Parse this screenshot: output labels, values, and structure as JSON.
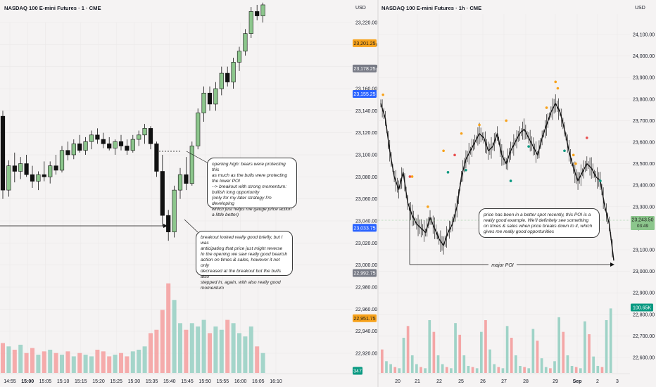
{
  "left_panel": {
    "title": "NASDAQ 100 E-mini Futures · 1 · CME",
    "currency": "USD",
    "notes": [
      {
        "lines": [
          "opening high: bears were protecting this",
          "as much as the bulls were protecting",
          "the lower POI",
          "--> breakout with strong momentum:",
          "bullish long opportunity",
          "(only for my later strategy I'm developing",
          "which just helps me gauge price action",
          "a little better)"
        ]
      },
      {
        "lines": [
          "breakout looked really good briefly, but I was",
          "anticipating that price just might reverse",
          "In the opening we saw really good bearish",
          "action on times & sales, however it not only",
          "decreased at the breakout but the bulls also",
          "stepped in, again, with also really good",
          "momentum"
        ]
      }
    ]
  },
  "right_panel": {
    "title": "NASDAQ 100 E-mini Futures · 1h · CME",
    "currency": "USD",
    "notes": [
      {
        "lines": [
          "price has been in a better spot recently, this POI is a",
          "really good example. We'll definitely see something",
          "on times & sales when price breaks down to it, which",
          "gives me really good opportunities"
        ]
      }
    ],
    "poi_label": "major POI"
  },
  "chart_data": [
    {
      "type": "candlestick",
      "title": "NASDAQ 100 E-mini Futures · 1 · CME",
      "currency": "USD",
      "x_ticks": [
        "14:55",
        "15:00",
        "15:05",
        "15:10",
        "15:15",
        "15:20",
        "15:25",
        "15:30",
        "15:35",
        "15:40",
        "15:45",
        "15:50",
        "15:55",
        "16:00",
        "16:05",
        "16:10"
      ],
      "y_ticks": [
        22920,
        22940,
        22960,
        22980,
        23000,
        23020,
        23040,
        23060,
        23080,
        23100,
        23120,
        23140,
        23160,
        23180,
        23200,
        23220
      ],
      "ylim": [
        22900,
        23235
      ],
      "price_badges": [
        {
          "label": "23,201.25",
          "value": 23201.25,
          "color": "#f7a21b"
        },
        {
          "label": "23,178.25",
          "value": 23178.25,
          "color": "#787b86"
        },
        {
          "label": "23,155.25",
          "value": 23155.25,
          "color": "#2962ff"
        },
        {
          "label": "23,033.75",
          "value": 23033.75,
          "color": "#2962ff"
        },
        {
          "label": "22,992.75",
          "value": 22992.75,
          "color": "#787b86"
        },
        {
          "label": "22,951.75",
          "value": 22951.75,
          "color": "#f7a21b"
        },
        {
          "label": "347",
          "value": 22903,
          "color": "#089981"
        }
      ],
      "candles": [
        {
          "t": 0,
          "o": 23135,
          "h": 23140,
          "l": 23060,
          "c": 23068
        },
        {
          "t": 1,
          "o": 23068,
          "h": 23095,
          "l": 23062,
          "c": 23090
        },
        {
          "t": 2,
          "o": 23090,
          "h": 23102,
          "l": 23075,
          "c": 23085
        },
        {
          "t": 3,
          "o": 23085,
          "h": 23098,
          "l": 23078,
          "c": 23092
        },
        {
          "t": 4,
          "o": 23092,
          "h": 23100,
          "l": 23080,
          "c": 23082
        },
        {
          "t": 5,
          "o": 23082,
          "h": 23090,
          "l": 23070,
          "c": 23076
        },
        {
          "t": 6,
          "o": 23076,
          "h": 23085,
          "l": 23068,
          "c": 23082
        },
        {
          "t": 7,
          "o": 23082,
          "h": 23094,
          "l": 23076,
          "c": 23080
        },
        {
          "t": 8,
          "o": 23080,
          "h": 23094,
          "l": 23074,
          "c": 23090
        },
        {
          "t": 9,
          "o": 23090,
          "h": 23100,
          "l": 23082,
          "c": 23086
        },
        {
          "t": 10,
          "o": 23086,
          "h": 23108,
          "l": 23084,
          "c": 23104
        },
        {
          "t": 11,
          "o": 23104,
          "h": 23112,
          "l": 23095,
          "c": 23100
        },
        {
          "t": 12,
          "o": 23100,
          "h": 23114,
          "l": 23096,
          "c": 23110
        },
        {
          "t": 13,
          "o": 23110,
          "h": 23118,
          "l": 23102,
          "c": 23104
        },
        {
          "t": 14,
          "o": 23104,
          "h": 23116,
          "l": 23100,
          "c": 23112
        },
        {
          "t": 15,
          "o": 23112,
          "h": 23122,
          "l": 23105,
          "c": 23118
        },
        {
          "t": 16,
          "o": 23118,
          "h": 23124,
          "l": 23110,
          "c": 23114
        },
        {
          "t": 17,
          "o": 23114,
          "h": 23120,
          "l": 23106,
          "c": 23110
        },
        {
          "t": 18,
          "o": 23110,
          "h": 23116,
          "l": 23104,
          "c": 23106
        },
        {
          "t": 19,
          "o": 23106,
          "h": 23114,
          "l": 23100,
          "c": 23112
        },
        {
          "t": 20,
          "o": 23112,
          "h": 23118,
          "l": 23104,
          "c": 23108
        },
        {
          "t": 21,
          "o": 23108,
          "h": 23114,
          "l": 23100,
          "c": 23104
        },
        {
          "t": 22,
          "o": 23104,
          "h": 23118,
          "l": 23102,
          "c": 23114
        },
        {
          "t": 23,
          "o": 23114,
          "h": 23122,
          "l": 23108,
          "c": 23118
        },
        {
          "t": 24,
          "o": 23118,
          "h": 23128,
          "l": 23110,
          "c": 23124
        },
        {
          "t": 25,
          "o": 23124,
          "h": 23126,
          "l": 23105,
          "c": 23110
        },
        {
          "t": 26,
          "o": 23110,
          "h": 23112,
          "l": 23080,
          "c": 23085
        },
        {
          "t": 27,
          "o": 23085,
          "h": 23100,
          "l": 23035,
          "c": 23045
        },
        {
          "t": 28,
          "o": 23045,
          "h": 23050,
          "l": 23022,
          "c": 23030
        },
        {
          "t": 29,
          "o": 23030,
          "h": 23072,
          "l": 23025,
          "c": 23068
        },
        {
          "t": 30,
          "o": 23068,
          "h": 23088,
          "l": 23060,
          "c": 23082
        },
        {
          "t": 31,
          "o": 23082,
          "h": 23098,
          "l": 23068,
          "c": 23074
        },
        {
          "t": 32,
          "o": 23074,
          "h": 23112,
          "l": 23072,
          "c": 23108
        },
        {
          "t": 33,
          "o": 23108,
          "h": 23142,
          "l": 23105,
          "c": 23138
        },
        {
          "t": 34,
          "o": 23138,
          "h": 23162,
          "l": 23130,
          "c": 23156
        },
        {
          "t": 35,
          "o": 23156,
          "h": 23162,
          "l": 23140,
          "c": 23146
        },
        {
          "t": 36,
          "o": 23146,
          "h": 23166,
          "l": 23140,
          "c": 23160
        },
        {
          "t": 37,
          "o": 23160,
          "h": 23180,
          "l": 23154,
          "c": 23174
        },
        {
          "t": 38,
          "o": 23174,
          "h": 23180,
          "l": 23162,
          "c": 23166
        },
        {
          "t": 39,
          "o": 23166,
          "h": 23188,
          "l": 23160,
          "c": 23184
        },
        {
          "t": 40,
          "o": 23184,
          "h": 23198,
          "l": 23176,
          "c": 23194
        },
        {
          "t": 41,
          "o": 23194,
          "h": 23214,
          "l": 23190,
          "c": 23210
        },
        {
          "t": 42,
          "o": 23210,
          "h": 23234,
          "l": 23206,
          "c": 23230
        },
        {
          "t": 43,
          "o": 23230,
          "h": 23236,
          "l": 23222,
          "c": 23226
        },
        {
          "t": 44,
          "o": 23226,
          "h": 23238,
          "l": 23220,
          "c": 23236
        }
      ],
      "volume": [
        90,
        80,
        70,
        85,
        60,
        75,
        55,
        65,
        70,
        60,
        55,
        65,
        50,
        60,
        55,
        50,
        70,
        65,
        50,
        55,
        60,
        50,
        65,
        70,
        80,
        120,
        130,
        190,
        270,
        220,
        150,
        130,
        150,
        140,
        160,
        120,
        140,
        130,
        160,
        150,
        120,
        110,
        140,
        80,
        60
      ],
      "volume_max": 280,
      "opening_high": 23102,
      "notes": 2
    },
    {
      "type": "candlestick",
      "title": "NASDAQ 100 E-mini Futures · 1h · CME",
      "currency": "USD",
      "x_ticks": [
        "20",
        "21",
        "22",
        "25",
        "26",
        "27",
        "28",
        "29",
        "Sep",
        "2",
        "3"
      ],
      "y_ticks": [
        22600,
        22700,
        22800,
        22900,
        23000,
        23100,
        23200,
        23300,
        23400,
        23500,
        23600,
        23700,
        23800,
        23900,
        24000,
        24100
      ],
      "ylim": [
        22540,
        24150
      ],
      "price_badges": [
        {
          "label": "23,243.50",
          "sub": "03:49",
          "value": 23243.5,
          "color": "#8cc68c"
        },
        {
          "label": "100.65K",
          "value": 22772,
          "color": "#089981"
        }
      ],
      "series": [
        {
          "x": 0,
          "y": 23780
        },
        {
          "x": 2,
          "y": 23710
        },
        {
          "x": 4,
          "y": 23560
        },
        {
          "x": 6,
          "y": 23440
        },
        {
          "x": 8,
          "y": 23380
        },
        {
          "x": 10,
          "y": 23460
        },
        {
          "x": 12,
          "y": 23320
        },
        {
          "x": 14,
          "y": 23260
        },
        {
          "x": 16,
          "y": 23220
        },
        {
          "x": 18,
          "y": 23200
        },
        {
          "x": 20,
          "y": 23180
        },
        {
          "x": 22,
          "y": 23250
        },
        {
          "x": 24,
          "y": 23200
        },
        {
          "x": 26,
          "y": 23150
        },
        {
          "x": 28,
          "y": 23120
        },
        {
          "x": 30,
          "y": 23180
        },
        {
          "x": 32,
          "y": 23220
        },
        {
          "x": 34,
          "y": 23300
        },
        {
          "x": 36,
          "y": 23440
        },
        {
          "x": 38,
          "y": 23520
        },
        {
          "x": 40,
          "y": 23560
        },
        {
          "x": 42,
          "y": 23600
        },
        {
          "x": 44,
          "y": 23640
        },
        {
          "x": 46,
          "y": 23620
        },
        {
          "x": 48,
          "y": 23560
        },
        {
          "x": 50,
          "y": 23580
        },
        {
          "x": 52,
          "y": 23640
        },
        {
          "x": 54,
          "y": 23540
        },
        {
          "x": 56,
          "y": 23500
        },
        {
          "x": 58,
          "y": 23560
        },
        {
          "x": 60,
          "y": 23600
        },
        {
          "x": 62,
          "y": 23640
        },
        {
          "x": 64,
          "y": 23660
        },
        {
          "x": 66,
          "y": 23620
        },
        {
          "x": 68,
          "y": 23580
        },
        {
          "x": 70,
          "y": 23540
        },
        {
          "x": 72,
          "y": 23620
        },
        {
          "x": 74,
          "y": 23680
        },
        {
          "x": 76,
          "y": 23740
        },
        {
          "x": 78,
          "y": 23780
        },
        {
          "x": 80,
          "y": 23740
        },
        {
          "x": 82,
          "y": 23660
        },
        {
          "x": 84,
          "y": 23560
        },
        {
          "x": 86,
          "y": 23480
        },
        {
          "x": 88,
          "y": 23420
        },
        {
          "x": 90,
          "y": 23460
        },
        {
          "x": 92,
          "y": 23500
        },
        {
          "x": 94,
          "y": 23480
        },
        {
          "x": 96,
          "y": 23440
        },
        {
          "x": 98,
          "y": 23420
        },
        {
          "x": 100,
          "y": 23300
        },
        {
          "x": 102,
          "y": 23220
        },
        {
          "x": 104,
          "y": 23050
        }
      ],
      "series_xmax": 104,
      "markers": [
        {
          "x": 1,
          "y": 23820,
          "color": "#f7a21b"
        },
        {
          "x": 13,
          "y": 23440,
          "color": "#e84d4d"
        },
        {
          "x": 14,
          "y": 23440,
          "color": "#f7a21b"
        },
        {
          "x": 21,
          "y": 23300,
          "color": "#f7a21b"
        },
        {
          "x": 30,
          "y": 23460,
          "color": "#089981"
        },
        {
          "x": 28,
          "y": 23560,
          "color": "#f7a21b"
        },
        {
          "x": 33,
          "y": 23540,
          "color": "#e84d4d"
        },
        {
          "x": 36,
          "y": 23640,
          "color": "#f7a21b"
        },
        {
          "x": 38,
          "y": 23470,
          "color": "#089981"
        },
        {
          "x": 44,
          "y": 23680,
          "color": "#f7a21b"
        },
        {
          "x": 56,
          "y": 23700,
          "color": "#f7a21b"
        },
        {
          "x": 58,
          "y": 23420,
          "color": "#089981"
        },
        {
          "x": 66,
          "y": 23580,
          "color": "#089981"
        },
        {
          "x": 74,
          "y": 23760,
          "color": "#f7a21b"
        },
        {
          "x": 78,
          "y": 23880,
          "color": "#f7a21b"
        },
        {
          "x": 79,
          "y": 23850,
          "color": "#f7a21b"
        },
        {
          "x": 82,
          "y": 23560,
          "color": "#089981"
        },
        {
          "x": 86,
          "y": 23540,
          "color": "#f7a21b"
        },
        {
          "x": 87,
          "y": 23500,
          "color": "#f7a21b"
        },
        {
          "x": 92,
          "y": 23620,
          "color": "#e84d4d"
        },
        {
          "x": 98,
          "y": 23420,
          "color": "#089981"
        }
      ],
      "volume": [
        40,
        20,
        15,
        10,
        8,
        60,
        80,
        30,
        15,
        10,
        8,
        90,
        70,
        30,
        15,
        10,
        8,
        85,
        65,
        30,
        12,
        10,
        8,
        70,
        90,
        40,
        15,
        10,
        8,
        80,
        60,
        30,
        12,
        10,
        8,
        75,
        55,
        25,
        10,
        8,
        20,
        95,
        70,
        30,
        12,
        10,
        8,
        88,
        66,
        28,
        12,
        10,
        90,
        110
      ],
      "volume_max": 120,
      "poi_level": 23000,
      "notes": 1
    }
  ]
}
